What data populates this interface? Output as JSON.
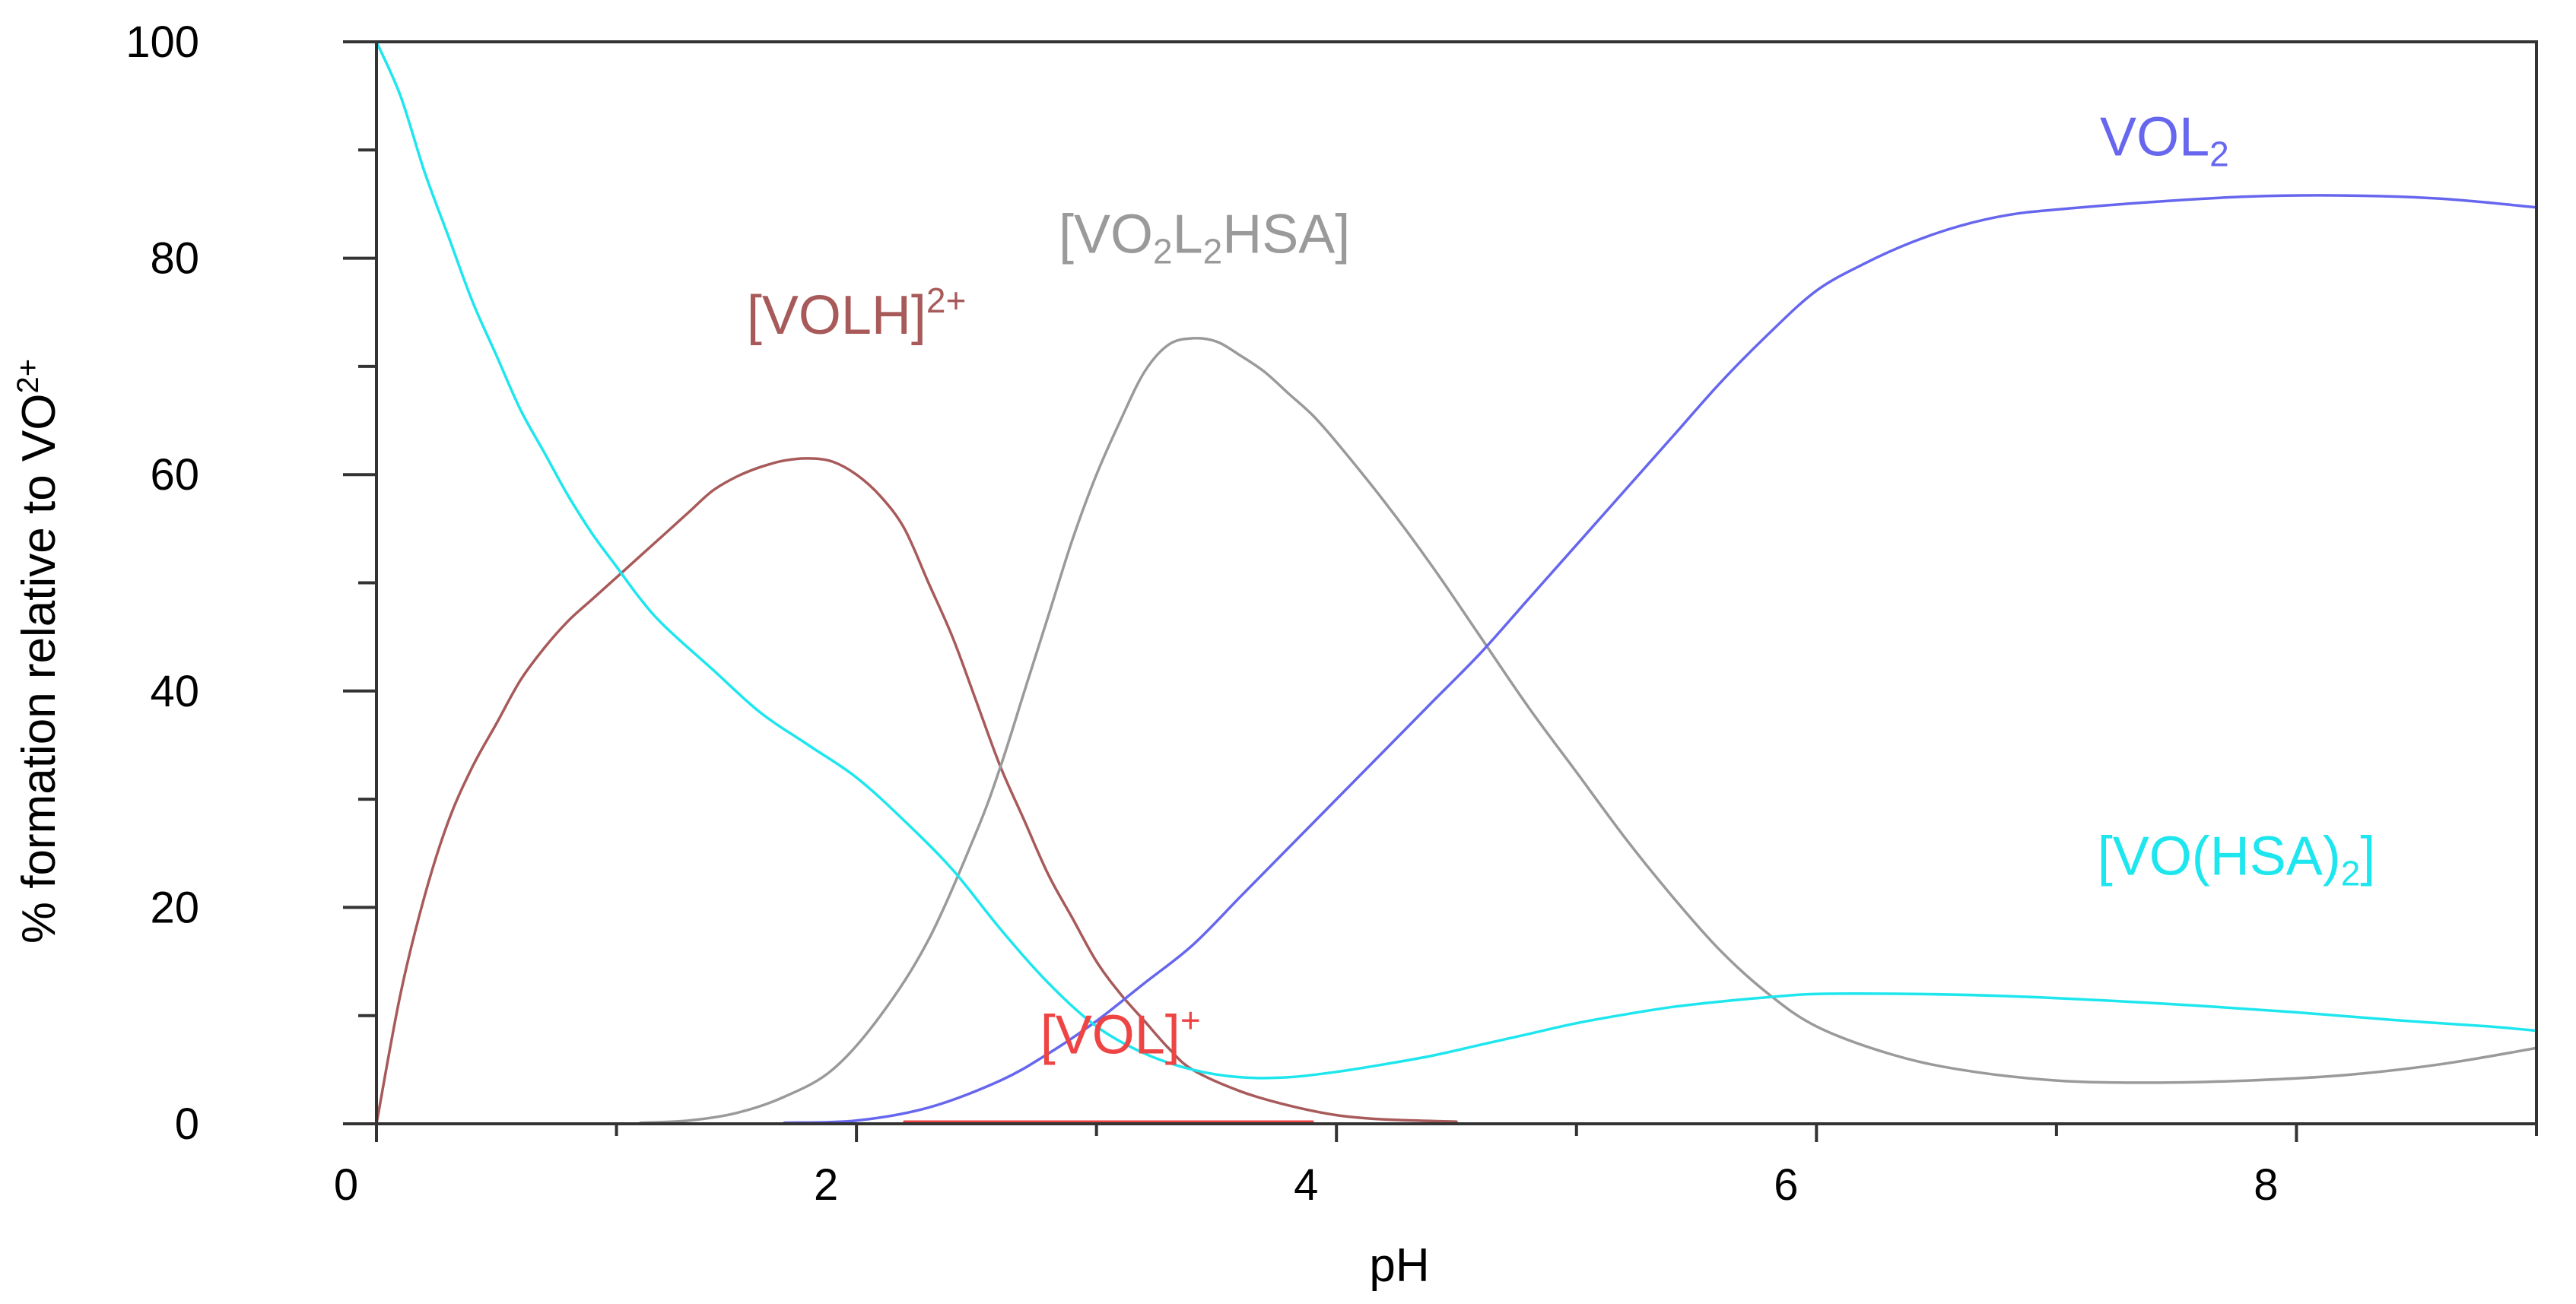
{
  "chart_data": {
    "type": "line",
    "xlabel": "pH",
    "ylabel": {
      "text": "% formation relative to VO",
      "sup": "2+"
    },
    "xlim": [
      0,
      9
    ],
    "ylim": [
      0,
      100
    ],
    "x_ticks": [
      0,
      2,
      4,
      6,
      8
    ],
    "x_minor_ticks": [
      1,
      3,
      5,
      7,
      9
    ],
    "y_ticks": [
      0,
      20,
      40,
      60,
      80,
      100
    ],
    "y_minor_ticks": [
      10,
      30,
      50,
      70,
      90
    ],
    "grid": false,
    "legend": "none (series labeled directly on the plot)",
    "series": [
      {
        "name": "[VOLH]2+",
        "label_parts": [
          {
            "text": "[VOLH]",
            "style": "normal"
          },
          {
            "text": "2+",
            "style": "sup"
          }
        ],
        "color": "#a85a5a",
        "label_at": [
          2.0,
          73
        ],
        "points": [
          [
            0.0,
            0
          ],
          [
            0.1,
            12
          ],
          [
            0.2,
            21
          ],
          [
            0.3,
            28
          ],
          [
            0.4,
            33
          ],
          [
            0.5,
            37
          ],
          [
            0.6,
            41
          ],
          [
            0.7,
            44
          ],
          [
            0.8,
            46.5
          ],
          [
            0.9,
            48.5
          ],
          [
            1.0,
            50.5
          ],
          [
            1.1,
            52.5
          ],
          [
            1.2,
            54.5
          ],
          [
            1.3,
            56.5
          ],
          [
            1.4,
            58.5
          ],
          [
            1.5,
            59.8
          ],
          [
            1.6,
            60.7
          ],
          [
            1.7,
            61.3
          ],
          [
            1.8,
            61.5
          ],
          [
            1.9,
            61.2
          ],
          [
            2.0,
            60
          ],
          [
            2.1,
            58
          ],
          [
            2.2,
            55
          ],
          [
            2.3,
            50
          ],
          [
            2.4,
            45
          ],
          [
            2.5,
            39
          ],
          [
            2.6,
            33
          ],
          [
            2.7,
            28
          ],
          [
            2.8,
            23
          ],
          [
            2.9,
            19
          ],
          [
            3.0,
            15
          ],
          [
            3.1,
            12
          ],
          [
            3.2,
            9.5
          ],
          [
            3.3,
            7
          ],
          [
            3.4,
            5
          ],
          [
            3.6,
            3
          ],
          [
            3.8,
            1.7
          ],
          [
            4.0,
            0.8
          ],
          [
            4.2,
            0.4
          ],
          [
            4.5,
            0.2
          ]
        ]
      },
      {
        "name": "[VO2L2HSA]",
        "label_parts": [
          {
            "text": "[VO",
            "style": "normal"
          },
          {
            "text": "2",
            "style": "sub"
          },
          {
            "text": "L",
            "style": "normal"
          },
          {
            "text": "2",
            "style": "sub"
          },
          {
            "text": "HSA]",
            "style": "normal"
          }
        ],
        "color": "#9a9a9a",
        "label_at": [
          3.45,
          80.5
        ],
        "points": [
          [
            1.1,
            0.1
          ],
          [
            1.3,
            0.3
          ],
          [
            1.5,
            1
          ],
          [
            1.7,
            2.5
          ],
          [
            1.9,
            5
          ],
          [
            2.1,
            10
          ],
          [
            2.3,
            17
          ],
          [
            2.5,
            27
          ],
          [
            2.6,
            33
          ],
          [
            2.7,
            40
          ],
          [
            2.8,
            47
          ],
          [
            2.9,
            54
          ],
          [
            3.0,
            60
          ],
          [
            3.1,
            65
          ],
          [
            3.2,
            69.5
          ],
          [
            3.3,
            72
          ],
          [
            3.4,
            72.6
          ],
          [
            3.5,
            72.3
          ],
          [
            3.6,
            71
          ],
          [
            3.7,
            69.5
          ],
          [
            3.8,
            67.5
          ],
          [
            3.9,
            65.5
          ],
          [
            4.0,
            63
          ],
          [
            4.2,
            57.5
          ],
          [
            4.4,
            51.5
          ],
          [
            4.6,
            45
          ],
          [
            4.8,
            38.5
          ],
          [
            5.0,
            32.5
          ],
          [
            5.2,
            26.5
          ],
          [
            5.4,
            21
          ],
          [
            5.6,
            16
          ],
          [
            5.8,
            12
          ],
          [
            6.0,
            9
          ],
          [
            6.3,
            6.5
          ],
          [
            6.6,
            5
          ],
          [
            7.0,
            4
          ],
          [
            7.4,
            3.8
          ],
          [
            7.8,
            4
          ],
          [
            8.2,
            4.5
          ],
          [
            8.6,
            5.5
          ],
          [
            9.0,
            7
          ]
        ]
      },
      {
        "name": "VOL2",
        "label_parts": [
          {
            "text": "VOL",
            "style": "normal"
          },
          {
            "text": "2",
            "style": "sub"
          }
        ],
        "color": "#6666ee",
        "label_at": [
          7.45,
          89.5
        ],
        "points": [
          [
            1.7,
            0.1
          ],
          [
            2.0,
            0.3
          ],
          [
            2.3,
            1.5
          ],
          [
            2.6,
            4
          ],
          [
            2.8,
            6.5
          ],
          [
            3.0,
            9.5
          ],
          [
            3.2,
            13
          ],
          [
            3.4,
            16.5
          ],
          [
            3.6,
            21
          ],
          [
            3.8,
            25.5
          ],
          [
            4.0,
            30
          ],
          [
            4.2,
            34.5
          ],
          [
            4.4,
            39
          ],
          [
            4.6,
            43.5
          ],
          [
            4.8,
            48.5
          ],
          [
            5.0,
            53.5
          ],
          [
            5.2,
            58.5
          ],
          [
            5.4,
            63.5
          ],
          [
            5.6,
            68.5
          ],
          [
            5.8,
            73
          ],
          [
            6.0,
            77
          ],
          [
            6.2,
            79.5
          ],
          [
            6.4,
            81.5
          ],
          [
            6.6,
            83
          ],
          [
            6.8,
            84
          ],
          [
            7.0,
            84.5
          ],
          [
            7.4,
            85.2
          ],
          [
            7.8,
            85.7
          ],
          [
            8.2,
            85.8
          ],
          [
            8.6,
            85.5
          ],
          [
            9.0,
            84.7
          ]
        ]
      },
      {
        "name": "[VO(HSA)2]",
        "label_parts": [
          {
            "text": "[VO(HSA)",
            "style": "normal"
          },
          {
            "text": "2",
            "style": "sub"
          },
          {
            "text": "]",
            "style": "normal"
          }
        ],
        "color": "#1ee6ee",
        "label_at": [
          7.75,
          23
        ],
        "points": [
          [
            0.0,
            100
          ],
          [
            0.1,
            95
          ],
          [
            0.2,
            88
          ],
          [
            0.3,
            82
          ],
          [
            0.4,
            76
          ],
          [
            0.5,
            71
          ],
          [
            0.6,
            66
          ],
          [
            0.7,
            62
          ],
          [
            0.8,
            58
          ],
          [
            0.9,
            54.5
          ],
          [
            1.0,
            51.5
          ],
          [
            1.1,
            48.5
          ],
          [
            1.2,
            46
          ],
          [
            1.4,
            42
          ],
          [
            1.6,
            38
          ],
          [
            1.8,
            35
          ],
          [
            2.0,
            32
          ],
          [
            2.2,
            28
          ],
          [
            2.4,
            23.5
          ],
          [
            2.6,
            18
          ],
          [
            2.8,
            13
          ],
          [
            3.0,
            9
          ],
          [
            3.2,
            6.5
          ],
          [
            3.4,
            5
          ],
          [
            3.6,
            4.3
          ],
          [
            3.8,
            4.3
          ],
          [
            4.0,
            4.8
          ],
          [
            4.2,
            5.5
          ],
          [
            4.4,
            6.3
          ],
          [
            4.6,
            7.3
          ],
          [
            4.8,
            8.3
          ],
          [
            5.0,
            9.3
          ],
          [
            5.2,
            10.1
          ],
          [
            5.4,
            10.8
          ],
          [
            5.6,
            11.3
          ],
          [
            5.8,
            11.7
          ],
          [
            6.0,
            12
          ],
          [
            6.4,
            12
          ],
          [
            6.8,
            11.8
          ],
          [
            7.2,
            11.4
          ],
          [
            7.6,
            10.9
          ],
          [
            8.0,
            10.3
          ],
          [
            8.4,
            9.6
          ],
          [
            8.8,
            9
          ],
          [
            9.0,
            8.6
          ]
        ]
      },
      {
        "name": "[VOL]+",
        "label_parts": [
          {
            "text": "[VOL]",
            "style": "normal"
          },
          {
            "text": "+",
            "style": "sup"
          }
        ],
        "color": "#ee4444",
        "label_at": [
          3.1,
          6.5
        ],
        "points": [
          [
            2.2,
            0.2
          ],
          [
            3.9,
            0.2
          ]
        ]
      }
    ]
  }
}
